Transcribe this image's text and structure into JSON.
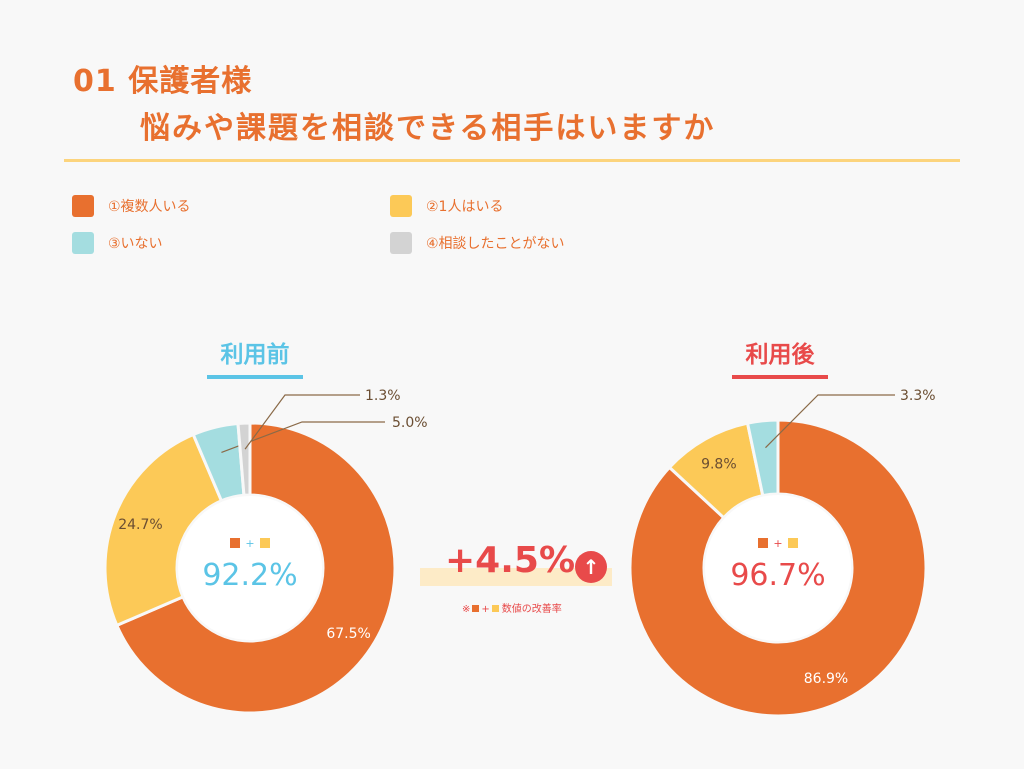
{
  "title": {
    "line1": "01 保護者様",
    "line2": "悩みや課題を相談できる相手はいますか"
  },
  "legend": [
    {
      "label": "①複数人いる",
      "color": "#e8702f"
    },
    {
      "label": "②1人はいる",
      "color": "#fcc957"
    },
    {
      "label": "③いない",
      "color": "#a4dde0"
    },
    {
      "label": "④相談したことがない",
      "color": "#d3d3d3"
    }
  ],
  "gain": {
    "value": "+4.5%",
    "arrow": "↑",
    "note_prefix": "※",
    "note_plus": "+",
    "note_suffix": "数値の改善率"
  },
  "chart_data": [
    {
      "type": "pie",
      "title": "利用前",
      "title_color": "#5bc4e6",
      "categories": [
        "①複数人いる",
        "②1人はいる",
        "③いない",
        "④相談したことがない"
      ],
      "values": [
        67.5,
        24.7,
        5.0,
        1.3
      ],
      "labels": [
        "67.5%",
        "24.7%",
        "5.0%",
        "1.3%"
      ],
      "center_value": "92.2%",
      "center_plus": "+",
      "center_color": "#5bc4e6"
    },
    {
      "type": "pie",
      "title": "利用後",
      "title_color": "#e84a4a",
      "categories": [
        "①複数人いる",
        "②1人はいる",
        "③いない"
      ],
      "values": [
        86.9,
        9.8,
        3.3
      ],
      "labels": [
        "86.9%",
        "9.8%",
        "3.3%"
      ],
      "center_value": "96.7%",
      "center_plus": "+",
      "center_color": "#e84a4a"
    }
  ]
}
